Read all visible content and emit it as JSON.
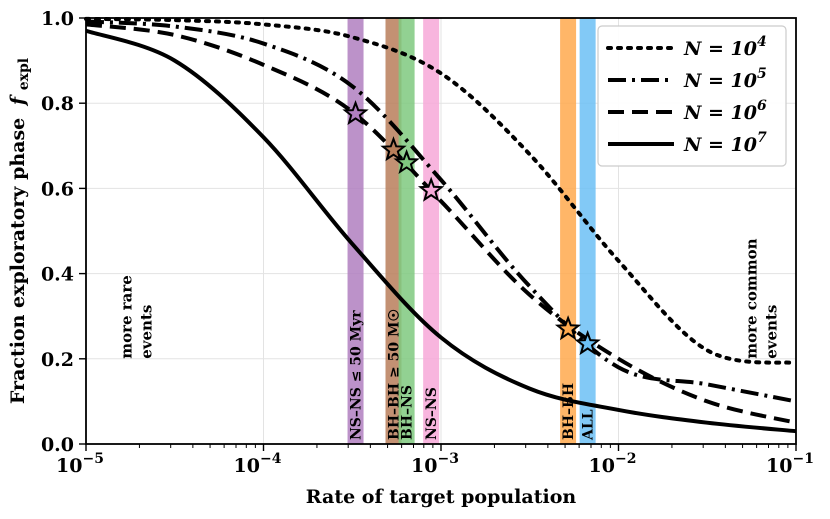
{
  "chart_data": {
    "type": "line",
    "xscale": "log",
    "xlim": [
      1e-05,
      0.1
    ],
    "ylim": [
      0.0,
      1.0
    ],
    "xlabel": "Rate of target population",
    "ylabel": "Fraction exploratory phase",
    "ylabel_symbol": "f",
    "ylabel_subscript": "expl",
    "grid": true,
    "legend_position": "top-right",
    "x_ticks": [
      {
        "value": 1e-05,
        "base": "10",
        "exp": "−5"
      },
      {
        "value": 0.0001,
        "base": "10",
        "exp": "−4"
      },
      {
        "value": 0.001,
        "base": "10",
        "exp": "−3"
      },
      {
        "value": 0.01,
        "base": "10",
        "exp": "−2"
      },
      {
        "value": 0.1,
        "base": "10",
        "exp": "−1"
      }
    ],
    "y_ticks": [
      {
        "value": 0.0,
        "label": "0.0"
      },
      {
        "value": 0.2,
        "label": "0.2"
      },
      {
        "value": 0.4,
        "label": "0.4"
      },
      {
        "value": 0.6,
        "label": "0.6"
      },
      {
        "value": 0.8,
        "label": "0.8"
      },
      {
        "value": 1.0,
        "label": "1.0"
      }
    ],
    "series": [
      {
        "name": "N = 10^4",
        "legend_prefix": "N = 10",
        "legend_exp": "4",
        "style": "dotted",
        "x": [
          1e-05,
          3.16e-05,
          0.0001,
          0.000316,
          0.001,
          0.00316,
          0.01,
          0.0316,
          0.1
        ],
        "y": [
          0.998,
          0.995,
          0.985,
          0.955,
          0.87,
          0.68,
          0.43,
          0.22,
          0.19
        ]
      },
      {
        "name": "N = 10^5",
        "legend_prefix": "N = 10",
        "legend_exp": "5",
        "style": "dashdot",
        "x": [
          1e-05,
          3.16e-05,
          0.0001,
          0.000316,
          0.001,
          0.00316,
          0.01,
          0.0316,
          0.1
        ],
        "y": [
          0.992,
          0.98,
          0.94,
          0.84,
          0.62,
          0.37,
          0.18,
          0.14,
          0.1
        ]
      },
      {
        "name": "N = 10^6",
        "legend_prefix": "N = 10",
        "legend_exp": "6",
        "style": "dashed",
        "x": [
          1e-05,
          3.16e-05,
          0.0001,
          0.000316,
          0.001,
          0.00316,
          0.01,
          0.0316,
          0.1
        ],
        "y": [
          0.985,
          0.96,
          0.89,
          0.78,
          0.57,
          0.35,
          0.2,
          0.1,
          0.05
        ]
      },
      {
        "name": "N = 10^7",
        "legend_prefix": "N = 10",
        "legend_exp": "7",
        "style": "solid",
        "x": [
          1e-05,
          3.16e-05,
          0.0001,
          0.000316,
          0.001,
          0.00316,
          0.01,
          0.0316,
          0.1
        ],
        "y": [
          0.97,
          0.9,
          0.72,
          0.47,
          0.25,
          0.13,
          0.08,
          0.05,
          0.03
        ]
      }
    ],
    "bands": [
      {
        "label": "NS–NS ≤ 50 Myr",
        "x_center": 0.00033,
        "color": "#b07fc0"
      },
      {
        "label": "BH–BH ≥ 50 M☉",
        "x_center": 0.00054,
        "color": "#b87e5a"
      },
      {
        "label": "BH–NS",
        "x_center": 0.00064,
        "color": "#7fc97f"
      },
      {
        "label": "NS–NS",
        "x_center": 0.00088,
        "color": "#f7a8d8"
      },
      {
        "label": "BH–BH",
        "x_center": 0.0052,
        "color": "#ffa94d"
      },
      {
        "label": "ALL",
        "x_center": 0.0067,
        "color": "#6cc0f5"
      }
    ],
    "markers": [
      {
        "x": 0.00033,
        "y": 0.775,
        "color": "#b07fc0"
      },
      {
        "x": 0.00054,
        "y": 0.69,
        "color": "#b87e5a"
      },
      {
        "x": 0.00064,
        "y": 0.66,
        "color": "#7fc97f"
      },
      {
        "x": 0.00088,
        "y": 0.595,
        "color": "#f7a8d8"
      },
      {
        "x": 0.0052,
        "y": 0.27,
        "color": "#ffa94d"
      },
      {
        "x": 0.0067,
        "y": 0.235,
        "color": "#6cc0f5"
      }
    ],
    "annotations": [
      {
        "lines": [
          "more rare",
          "events"
        ],
        "x": 1.8e-05,
        "y": 0.2
      },
      {
        "lines": [
          "more common",
          "events"
        ],
        "x": 0.06,
        "y": 0.2
      }
    ]
  }
}
